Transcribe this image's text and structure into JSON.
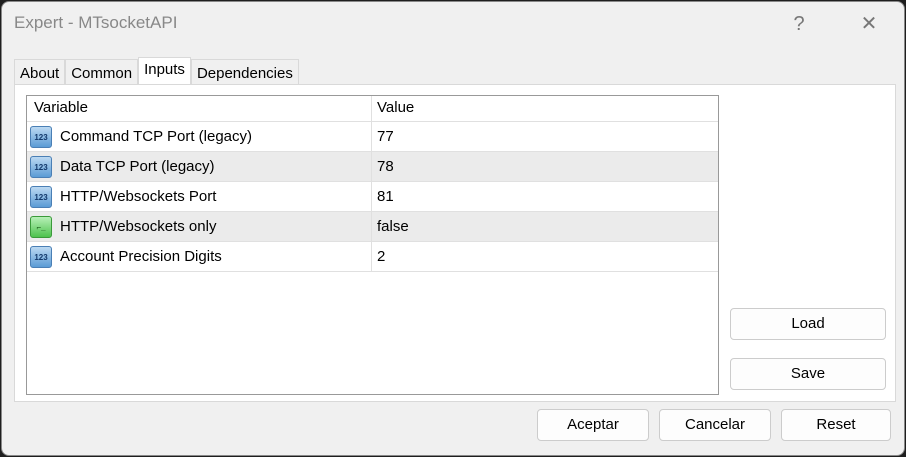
{
  "window": {
    "title": "Expert - MTsocketAPI",
    "help": "?",
    "close": "✕"
  },
  "tabs": [
    {
      "label": "About"
    },
    {
      "label": "Common"
    },
    {
      "label": "Inputs",
      "active": true
    },
    {
      "label": "Dependencies"
    }
  ],
  "table": {
    "headers": [
      "Variable",
      "Value"
    ],
    "rows": [
      {
        "icon": "number-icon",
        "variable": "Command TCP Port (legacy)",
        "value": "77"
      },
      {
        "icon": "number-icon",
        "variable": "Data TCP Port (legacy)",
        "value": "78"
      },
      {
        "icon": "number-icon",
        "variable": "HTTP/Websockets Port",
        "value": "81"
      },
      {
        "icon": "boolean-icon",
        "variable": "HTTP/Websockets only",
        "value": "false"
      },
      {
        "icon": "number-icon",
        "variable": "Account Precision Digits",
        "value": "2"
      }
    ]
  },
  "icon_text": "123",
  "buttons": {
    "load": "Load",
    "save": "Save",
    "accept": "Aceptar",
    "cancel": "Cancelar",
    "reset": "Reset"
  }
}
